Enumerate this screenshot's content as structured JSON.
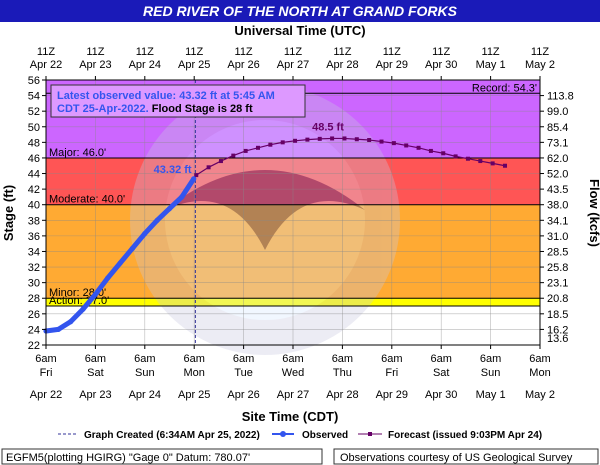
{
  "header": {
    "title": "RED RIVER OF THE NORTH AT GRAND FORKS",
    "top_axis_title": "Universal Time (UTC)",
    "bottom_axis_title": "Site Time (CDT)"
  },
  "chart_data": {
    "type": "line",
    "title": "RED RIVER OF THE NORTH AT GRAND FORKS",
    "ylabel": "Stage (ft)",
    "y2label": "Flow (kcfs)",
    "xlabel": "Site Time (CDT)",
    "x2label": "Universal Time (UTC)",
    "ylim": [
      22,
      56
    ],
    "xlim": [
      "2022-04-22 06:00",
      "2022-05-02 06:00"
    ],
    "grid": true,
    "y_ticks": [
      22,
      24,
      26,
      28,
      30,
      32,
      34,
      36,
      38,
      40,
      42,
      44,
      46,
      48,
      50,
      52,
      54,
      56
    ],
    "y2_ticks": [
      {
        "stage": 24,
        "label": "16.2"
      },
      {
        "stage": 26,
        "label": "18.5"
      },
      {
        "stage": 28,
        "label": "20.8"
      },
      {
        "stage": 30,
        "label": "23.1"
      },
      {
        "stage": 32,
        "label": "25.8"
      },
      {
        "stage": 34,
        "label": "28.5"
      },
      {
        "stage": 36,
        "label": "31.0"
      },
      {
        "stage": 38,
        "label": "34.1"
      },
      {
        "stage": 40,
        "label": "38.0"
      },
      {
        "stage": 42,
        "label": "43.5"
      },
      {
        "stage": 44,
        "label": "52.0"
      },
      {
        "stage": 46,
        "label": "62.0"
      },
      {
        "stage": 48,
        "label": "73.1"
      },
      {
        "stage": 50,
        "label": "85.4"
      },
      {
        "stage": 52,
        "label": "99.0"
      },
      {
        "stage": 54,
        "label": "113.8"
      }
    ],
    "y2_bottom_label": "13.6",
    "x_ticks_bottom": [
      {
        "time": "6am",
        "day": "Fri",
        "date": "Apr 22"
      },
      {
        "time": "6am",
        "day": "Sat",
        "date": "Apr 23"
      },
      {
        "time": "6am",
        "day": "Sun",
        "date": "Apr 24"
      },
      {
        "time": "6am",
        "day": "Mon",
        "date": "Apr 25"
      },
      {
        "time": "6am",
        "day": "Tue",
        "date": "Apr 26"
      },
      {
        "time": "6am",
        "day": "Wed",
        "date": "Apr 27"
      },
      {
        "time": "6am",
        "day": "Thu",
        "date": "Apr 28"
      },
      {
        "time": "6am",
        "day": "Fri",
        "date": "Apr 29"
      },
      {
        "time": "6am",
        "day": "Sat",
        "date": "Apr 30"
      },
      {
        "time": "6am",
        "day": "Sun",
        "date": "May 1"
      },
      {
        "time": "6am",
        "day": "Mon",
        "date": "May 2"
      }
    ],
    "x_ticks_top": [
      {
        "time": "11Z",
        "date": "Apr 22"
      },
      {
        "time": "11Z",
        "date": "Apr 23"
      },
      {
        "time": "11Z",
        "date": "Apr 24"
      },
      {
        "time": "11Z",
        "date": "Apr 25"
      },
      {
        "time": "11Z",
        "date": "Apr 26"
      },
      {
        "time": "11Z",
        "date": "Apr 27"
      },
      {
        "time": "11Z",
        "date": "Apr 28"
      },
      {
        "time": "11Z",
        "date": "Apr 29"
      },
      {
        "time": "11Z",
        "date": "Apr 30"
      },
      {
        "time": "11Z",
        "date": "May 1"
      },
      {
        "time": "11Z",
        "date": "May 2"
      }
    ],
    "flood_categories": [
      {
        "name": "Record",
        "label": "Record: 54.3'",
        "stage": 54.3,
        "color": "#000000"
      },
      {
        "name": "Major",
        "label": "Major: 46.0'",
        "stage": 46.0,
        "from": 46,
        "to": 56,
        "color": "#cc66ff"
      },
      {
        "name": "Moderate",
        "label": "Moderate: 40.0'",
        "stage": 40.0,
        "from": 40,
        "to": 46,
        "color": "#ff5555"
      },
      {
        "name": "Minor",
        "label": "Minor: 28.0'",
        "stage": 28.0,
        "from": 28,
        "to": 40,
        "color": "#ffaa33"
      },
      {
        "name": "Action",
        "label": "Action: 27.0'",
        "stage": 27.0,
        "from": 27,
        "to": 28,
        "color": "#ffff00"
      }
    ],
    "observed": {
      "name": "Observed",
      "color": "#3355ee",
      "points": [
        {
          "x": "2022-04-22 06:00",
          "y": 23.8
        },
        {
          "x": "2022-04-22 12:00",
          "y": 24.0
        },
        {
          "x": "2022-04-22 18:00",
          "y": 25.0
        },
        {
          "x": "2022-04-23 00:00",
          "y": 26.6
        },
        {
          "x": "2022-04-23 06:00",
          "y": 28.5
        },
        {
          "x": "2022-04-23 12:00",
          "y": 30.6
        },
        {
          "x": "2022-04-23 18:00",
          "y": 32.5
        },
        {
          "x": "2022-04-24 00:00",
          "y": 34.4
        },
        {
          "x": "2022-04-24 06:00",
          "y": 36.3
        },
        {
          "x": "2022-04-24 12:00",
          "y": 38.0
        },
        {
          "x": "2022-04-24 18:00",
          "y": 39.5
        },
        {
          "x": "2022-04-25 00:00",
          "y": 41.0
        },
        {
          "x": "2022-04-25 05:45",
          "y": 43.32
        }
      ]
    },
    "forecast": {
      "name": "Forecast (issued 9:03PM Apr 24)",
      "color": "#660066",
      "points": [
        {
          "x": "2022-04-25 07:00",
          "y": 43.8
        },
        {
          "x": "2022-04-25 13:00",
          "y": 44.8
        },
        {
          "x": "2022-04-25 19:00",
          "y": 45.6
        },
        {
          "x": "2022-04-26 01:00",
          "y": 46.3
        },
        {
          "x": "2022-04-26 07:00",
          "y": 46.9
        },
        {
          "x": "2022-04-26 13:00",
          "y": 47.3
        },
        {
          "x": "2022-04-26 19:00",
          "y": 47.7
        },
        {
          "x": "2022-04-27 01:00",
          "y": 48.0
        },
        {
          "x": "2022-04-27 07:00",
          "y": 48.2
        },
        {
          "x": "2022-04-27 13:00",
          "y": 48.35
        },
        {
          "x": "2022-04-27 19:00",
          "y": 48.45
        },
        {
          "x": "2022-04-28 01:00",
          "y": 48.5
        },
        {
          "x": "2022-04-28 07:00",
          "y": 48.5
        },
        {
          "x": "2022-04-28 13:00",
          "y": 48.4
        },
        {
          "x": "2022-04-28 19:00",
          "y": 48.3
        },
        {
          "x": "2022-04-29 01:00",
          "y": 48.1
        },
        {
          "x": "2022-04-29 07:00",
          "y": 47.9
        },
        {
          "x": "2022-04-29 13:00",
          "y": 47.6
        },
        {
          "x": "2022-04-29 19:00",
          "y": 47.3
        },
        {
          "x": "2022-04-30 01:00",
          "y": 46.9
        },
        {
          "x": "2022-04-30 07:00",
          "y": 46.6
        },
        {
          "x": "2022-04-30 13:00",
          "y": 46.2
        },
        {
          "x": "2022-04-30 19:00",
          "y": 45.9
        },
        {
          "x": "2022-05-01 01:00",
          "y": 45.6
        },
        {
          "x": "2022-05-01 07:00",
          "y": 45.3
        },
        {
          "x": "2022-05-01 13:00",
          "y": 45.0
        }
      ]
    },
    "annotations": {
      "current_label": "43.32 ft",
      "crest_label": "48.5 ft",
      "crest_point": {
        "x": "2022-04-28 01:00",
        "y": 48.5
      },
      "latest_box_line1": "Latest observed value: 43.32  ft at 5:45 AM",
      "latest_box_line2_prefix": "CDT 25-Apr-2022.",
      "latest_box_line2_suffix": " Flood Stage is 28 ft",
      "graph_created_time": "2022-04-25 06:34"
    },
    "legend": {
      "placement": "bottom",
      "graph_created": "Graph Created (6:34AM Apr 25, 2022)",
      "observed": "Observed",
      "forecast": "Forecast (issued 9:03PM Apr 24)"
    },
    "footer": {
      "left": "EGFM5(plotting HGIRG) \"Gage 0\" Datum: 780.07'",
      "right": "Observations courtesy of US Geological Survey"
    },
    "colors": {
      "title_bar": "#1a1ab8",
      "title_text": "#ffffff",
      "below_action": "#ffffff",
      "watermark": "#b0b0c8"
    }
  }
}
